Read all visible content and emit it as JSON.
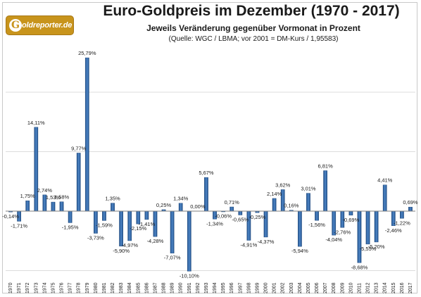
{
  "logo": {
    "icon": "gold-g-icon",
    "text": "oldreporter.de",
    "color": "#c8941c"
  },
  "header": {
    "title": "Euro-Goldpreis im Dezember (1970 - 2017)",
    "subtitle": "Jeweils Veränderung gegenüber Vormonat in Prozent",
    "source": "(Quelle: WGC / LBMA; vor 2001 = DM-Kurs / 1,95583)"
  },
  "chart_data": {
    "type": "bar",
    "title": "Euro-Goldpreis im Dezember (1970 - 2017)",
    "subtitle": "Jeweils Veränderung gegenüber Vormonat in Prozent",
    "xlabel": "",
    "ylabel": "",
    "ylim": [
      -12,
      30
    ],
    "grid": true,
    "bar_color": "#3a6fae",
    "categories": [
      "1970",
      "1971",
      "1972",
      "1973",
      "1974",
      "1975",
      "1976",
      "1977",
      "1978",
      "1979",
      "1980",
      "1981",
      "1982",
      "1983",
      "1984",
      "1985",
      "1986",
      "1987",
      "1988",
      "1989",
      "1990",
      "1991",
      "1992",
      "1993",
      "1994",
      "1995",
      "1996",
      "1997",
      "1998",
      "1999",
      "2000",
      "2001",
      "2002",
      "2003",
      "2004",
      "2005",
      "2006",
      "2007",
      "2008",
      "2009",
      "2010",
      "2011",
      "2012",
      "2013",
      "2014",
      "2015",
      "2016",
      "2017"
    ],
    "values": [
      -0.14,
      -1.71,
      1.75,
      14.11,
      2.74,
      1.53,
      1.58,
      -1.95,
      9.77,
      25.79,
      -3.73,
      -1.59,
      1.35,
      -5.9,
      -4.97,
      -2.15,
      -1.41,
      -4.28,
      0.25,
      -7.07,
      1.34,
      -10.1,
      0.0,
      5.67,
      -1.34,
      -0.06,
      0.71,
      -0.65,
      -4.91,
      -0.25,
      -4.37,
      2.14,
      3.62,
      0.16,
      -5.94,
      3.01,
      -1.56,
      6.81,
      -4.04,
      -2.76,
      -0.69,
      -8.68,
      -5.55,
      -5.2,
      4.41,
      -2.46,
      -1.22,
      0.69
    ],
    "labels": [
      "-0,14%",
      "-1,71%",
      "1,75%",
      "14,11%",
      "2,74%",
      "1,53%",
      "1,58%",
      "-1,95%",
      "9,77%",
      "25,79%",
      "-3,73%",
      "-1,59%",
      "1,35%",
      "-5,90%",
      "-4,97%",
      "-2,15%",
      "-1,41%",
      "-4,28%",
      "0,25%",
      "-7,07%",
      "1,34%",
      "-10,10%",
      "0,00%",
      "5,67%",
      "-1,34%",
      "-0,06%",
      "0,71%",
      "-0,65%",
      "-4,91%",
      "-0,25%",
      "-4,37%",
      "2,14%",
      "3,62%",
      "0,16%",
      "-5,94%",
      "3,01%",
      "-1,56%",
      "6,81%",
      "-4,04%",
      "-2,76%",
      "-0,69%",
      "-8,68%",
      "-5,55%",
      "-5,20%",
      "4,41%",
      "-2,46%",
      "-1,22%",
      "0,69%"
    ]
  }
}
